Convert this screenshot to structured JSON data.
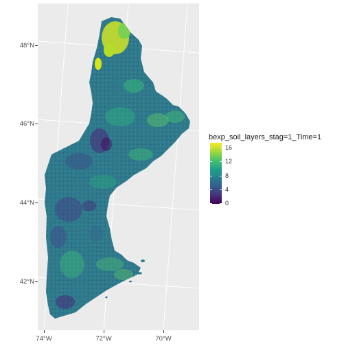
{
  "map": {
    "background_color": "#ebebeb",
    "grid_color": "#ffffff",
    "y_axis_labels": [
      "48°N",
      "46°N",
      "44°N",
      "42°N"
    ],
    "x_axis_labels": [
      "74°W",
      "72°W",
      "70°W"
    ]
  },
  "legend": {
    "title": "bexp_soil_layers_stag=1_Time=1",
    "labels": [
      "16",
      "12",
      "8",
      "4",
      "0"
    ],
    "range": [
      0,
      17
    ],
    "colormap": "viridis",
    "colors": [
      "#440154",
      "#46327e",
      "#365c8d",
      "#277f8e",
      "#1fa187",
      "#4ac16d",
      "#a0da39",
      "#fde725"
    ]
  }
}
